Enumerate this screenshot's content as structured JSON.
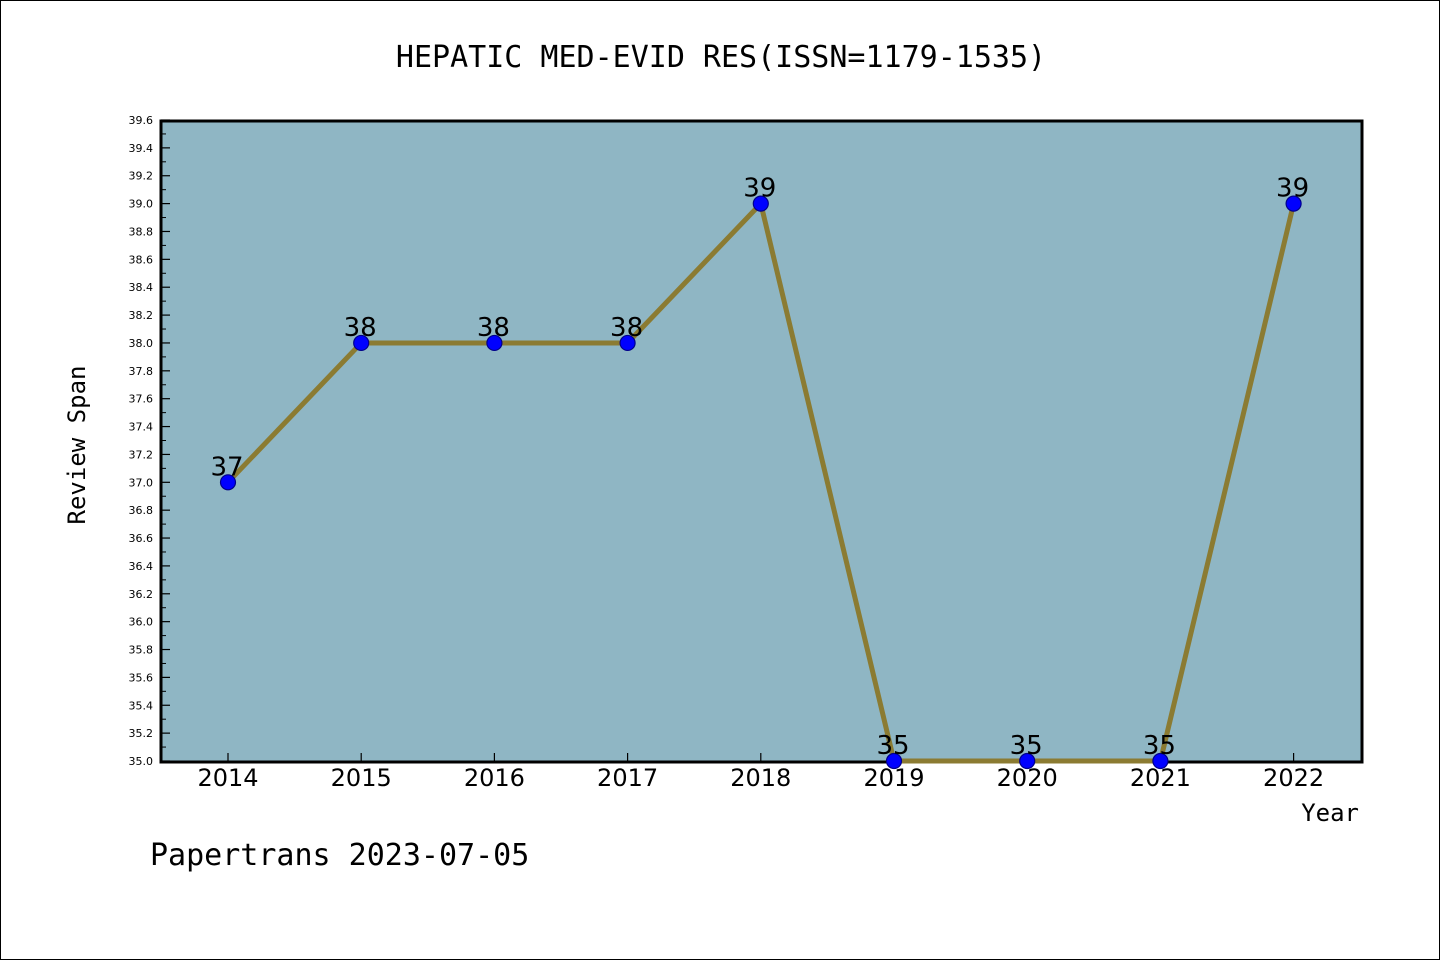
{
  "chart_data": {
    "type": "line",
    "title": "HEPATIC MED-EVID RES(ISSN=1179-1535)",
    "xlabel": "Year",
    "ylabel": "Review Span",
    "categories": [
      "2014",
      "2015",
      "2016",
      "2017",
      "2018",
      "2019",
      "2020",
      "2021",
      "2022"
    ],
    "series": [
      {
        "values": [
          37,
          38,
          38,
          38,
          39,
          35,
          35,
          35,
          39
        ]
      }
    ],
    "data_labels": [
      "37",
      "38",
      "38",
      "38",
      "39",
      "35",
      "35",
      "35",
      "39"
    ],
    "ylim": [
      35.0,
      39.6
    ],
    "y_ticks": [
      "35.0",
      "35.2",
      "35.4",
      "35.6",
      "35.8",
      "36.0",
      "36.2",
      "36.4",
      "36.6",
      "36.8",
      "37.0",
      "37.2",
      "37.4",
      "37.6",
      "37.8",
      "38.0",
      "38.2",
      "38.4",
      "38.6",
      "38.8",
      "39.0",
      "39.2",
      "39.4",
      "39.6"
    ],
    "grid": false,
    "legend": "none",
    "colors": {
      "plot_background": "#8fb6c4",
      "line": "#8b7b32",
      "marker_fill": "#0000ff",
      "marker_stroke": "#00008b"
    }
  },
  "footer": {
    "watermark": "Papertrans 2023-07-05"
  }
}
